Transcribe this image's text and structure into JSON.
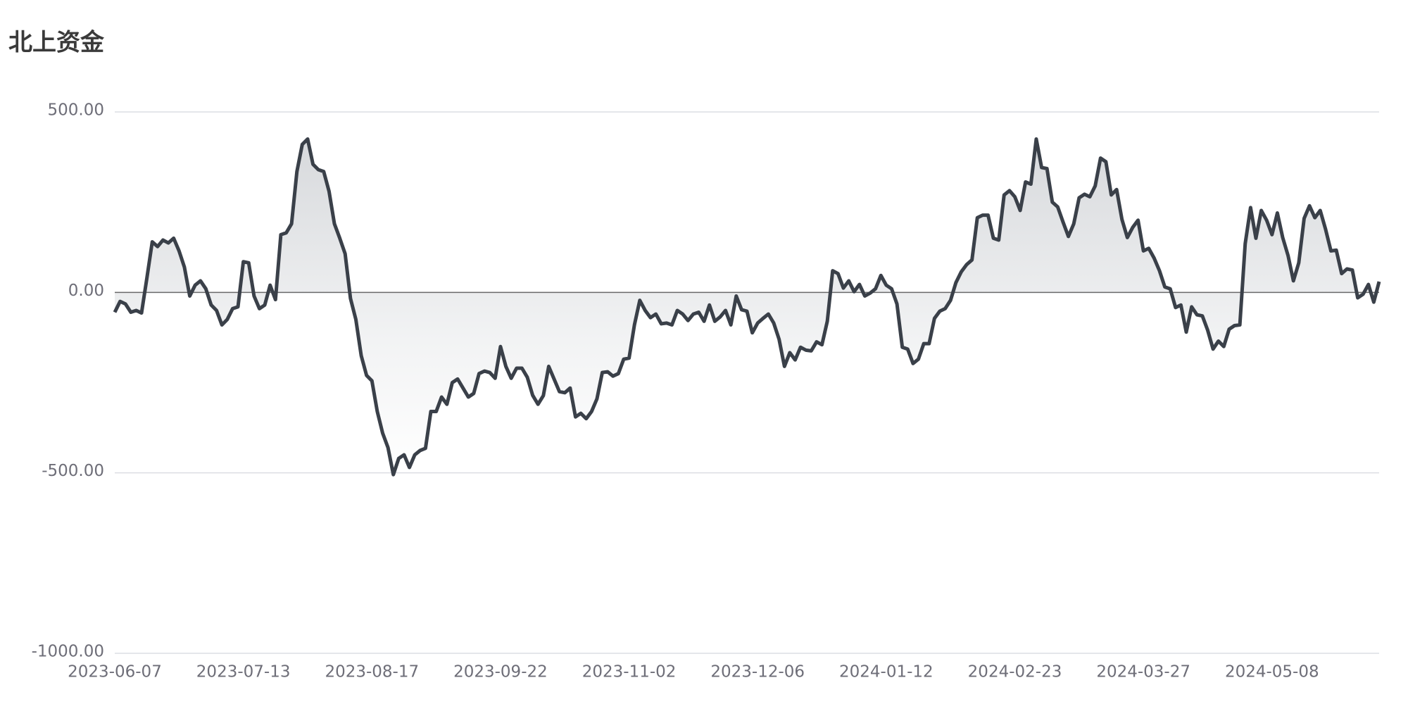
{
  "chart_data": {
    "type": "area-line",
    "title": "北上资金",
    "color": "#3a4049",
    "grid": true,
    "ylim": [
      -1000,
      500
    ],
    "yticks": [
      {
        "value": -1000,
        "label": "-1000.00"
      },
      {
        "value": -500,
        "label": "-500.00"
      },
      {
        "value": 0,
        "label": "0.00"
      },
      {
        "value": 500,
        "label": "500.00"
      }
    ],
    "categories": [
      "2023-06-07",
      null,
      null,
      null,
      null,
      null,
      null,
      null,
      null,
      null,
      null,
      null,
      null,
      null,
      null,
      null,
      null,
      null,
      null,
      null,
      null,
      null,
      null,
      null,
      "2023-07-13",
      null,
      null,
      null,
      null,
      null,
      null,
      null,
      null,
      null,
      null,
      null,
      null,
      null,
      null,
      null,
      null,
      null,
      null,
      null,
      null,
      null,
      null,
      null,
      "2023-08-17",
      null,
      null,
      null,
      null,
      null,
      null,
      null,
      null,
      null,
      null,
      null,
      null,
      null,
      null,
      null,
      null,
      null,
      null,
      null,
      null,
      null,
      null,
      null,
      "2023-09-22",
      null,
      null,
      null,
      null,
      null,
      null,
      null,
      null,
      null,
      null,
      null,
      null,
      null,
      null,
      null,
      null,
      null,
      null,
      null,
      null,
      null,
      null,
      null,
      "2023-11-02",
      null,
      null,
      null,
      null,
      null,
      null,
      null,
      null,
      null,
      null,
      null,
      null,
      null,
      null,
      null,
      null,
      null,
      null,
      null,
      null,
      null,
      null,
      null,
      "2023-12-06",
      null,
      null,
      null,
      null,
      null,
      null,
      null,
      null,
      null,
      null,
      null,
      null,
      null,
      null,
      null,
      null,
      null,
      null,
      null,
      null,
      null,
      null,
      null,
      "2024-01-12",
      null,
      null,
      null,
      null,
      null,
      null,
      null,
      null,
      null,
      null,
      null,
      null,
      null,
      null,
      null,
      null,
      null,
      null,
      null,
      null,
      null,
      null,
      null,
      "2024-02-23",
      null,
      null,
      null,
      null,
      null,
      null,
      null,
      null,
      null,
      null,
      null,
      null,
      null,
      null,
      null,
      null,
      null,
      null,
      null,
      null,
      null,
      null,
      null,
      "2024-03-27",
      null,
      null,
      null,
      null,
      null,
      null,
      null,
      null,
      null,
      null,
      null,
      null,
      null,
      null,
      null,
      null,
      null,
      null,
      null,
      null,
      null,
      null,
      null,
      "2024-05-08",
      null,
      null,
      null,
      null,
      null,
      null,
      null,
      null,
      null,
      null,
      null,
      null,
      null,
      null,
      null,
      null,
      null,
      null,
      null,
      null
    ],
    "values": [
      -55,
      -25,
      -32,
      -55,
      -50,
      -57,
      40,
      140,
      127,
      145,
      137,
      150,
      115,
      70,
      -10,
      20,
      32,
      10,
      -35,
      -50,
      -90,
      -75,
      -45,
      -40,
      85,
      82,
      -10,
      -45,
      -35,
      20,
      -20,
      160,
      165,
      190,
      335,
      410,
      425,
      355,
      340,
      335,
      280,
      190,
      150,
      107,
      -17,
      -75,
      -175,
      -230,
      -245,
      -330,
      -390,
      -430,
      -505,
      -460,
      -450,
      -485,
      -450,
      -438,
      -432,
      -330,
      -330,
      -290,
      -310,
      -250,
      -240,
      -265,
      -290,
      -280,
      -225,
      -218,
      -222,
      -238,
      -150,
      -205,
      -238,
      -210,
      -210,
      -235,
      -285,
      -310,
      -286,
      -205,
      -240,
      -275,
      -278,
      -265,
      -345,
      -335,
      -350,
      -330,
      -295,
      -222,
      -220,
      -232,
      -225,
      -185,
      -182,
      -90,
      -22,
      -50,
      -70,
      -60,
      -87,
      -85,
      -90,
      -50,
      -60,
      -78,
      -60,
      -55,
      -80,
      -35,
      -80,
      -68,
      -50,
      -90,
      -10,
      -48,
      -52,
      -112,
      -85,
      -72,
      -60,
      -85,
      -130,
      -205,
      -167,
      -187,
      -152,
      -160,
      -162,
      -137,
      -145,
      -80,
      60,
      52,
      12,
      32,
      2,
      22,
      -10,
      -2,
      10,
      47,
      20,
      10,
      -32,
      -152,
      -157,
      -197,
      -185,
      -142,
      -142,
      -72,
      -52,
      -45,
      -22,
      27,
      57,
      77,
      90,
      207,
      214,
      214,
      150,
      145,
      270,
      282,
      265,
      227,
      306,
      300,
      425,
      346,
      343,
      250,
      237,
      195,
      155,
      190,
      262,
      272,
      265,
      295,
      372,
      362,
      270,
      285,
      202,
      152,
      180,
      200,
      115,
      122,
      95,
      60,
      15,
      10,
      -42,
      -35,
      -110,
      -40,
      -62,
      -65,
      -105,
      -157,
      -135,
      -150,
      -102,
      -92,
      -90,
      135,
      235,
      150,
      227,
      200,
      160,
      220,
      152,
      102,
      32,
      82,
      205,
      240,
      207,
      227,
      175,
      115,
      117,
      52,
      65,
      62,
      -15,
      -5,
      22,
      -27,
      30
    ]
  }
}
